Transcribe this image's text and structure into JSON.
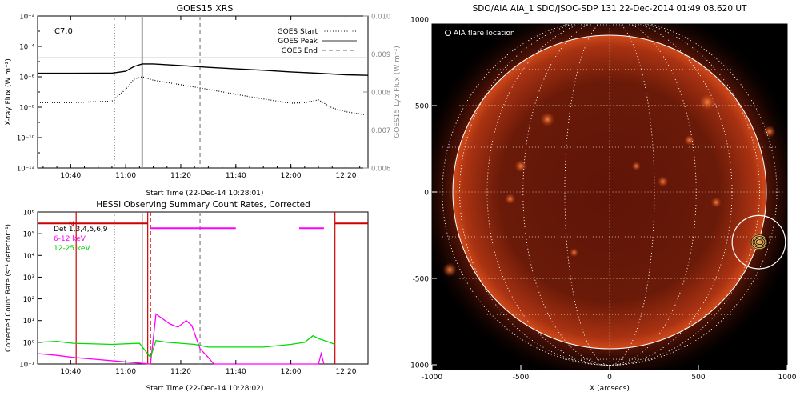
{
  "goes": {
    "title": "GOES15 XRS",
    "class_label": "C7.0",
    "ylabel_left": "X-ray Flux (W m⁻²)",
    "ylabel_right": "GOES15 Lyα Flux (W m⁻²)",
    "xlabel": "Start Time (22-Dec-14 10:28:01)",
    "legend": [
      {
        "label": "GOES Start",
        "style": "dotted"
      },
      {
        "label": "GOES Peak",
        "style": "solid"
      },
      {
        "label": "GOES End",
        "style": "dashed"
      }
    ],
    "colors": {
      "lya": "#9e9e9e",
      "long": "#000000",
      "short": "#000000",
      "marker": "#9a9a9a"
    }
  },
  "hessi": {
    "title": "HESSI Observing Summary Count Rates, Corrected",
    "ylabel": "Corrected Count Rate (s⁻¹ detector⁻¹)",
    "xlabel": "Start Time (22-Dec-14 10:28:02)",
    "legend": [
      {
        "label": "Det 1,3,4,5,6,9",
        "color": "#000000"
      },
      {
        "label": "6-12 keV",
        "color": "#ff00ff"
      },
      {
        "label": "12-25 keV",
        "color": "#00dd00"
      }
    ],
    "flag_letter": "N",
    "colors": {
      "low": "#ff00ff",
      "high": "#00dd00",
      "night": "#cc0000",
      "saa": "#ff00ff"
    }
  },
  "aia": {
    "title": "SDO/AIA AIA_1 SDO/JSOC-SDP 131 22-Dec-2014 01:49:08.620 UT",
    "legend": "AIA flare location",
    "xlabel": "X (arcsecs)",
    "ylabel": "Y (arcsecs)"
  },
  "chart_data": [
    {
      "type": "line",
      "title": "GOES15 XRS",
      "xlabel": "Start Time (22-Dec-14 10:28:01)",
      "ylabel": "X-ray Flux (W m⁻²)",
      "xlim": [
        "10:28",
        "12:28"
      ],
      "xticks": [
        "10:40",
        "11:00",
        "11:20",
        "11:40",
        "12:00",
        "12:20"
      ],
      "ylim": [
        1e-12,
        0.01
      ],
      "yscale": "log",
      "yticks": [
        "10⁻¹²",
        "10⁻¹⁰",
        "10⁻⁸",
        "10⁻⁶",
        "10⁻⁴",
        "10⁻²"
      ],
      "y2lim": [
        0.006,
        0.01
      ],
      "y2ticks": [
        "0.006",
        "0.007",
        "0.008",
        "0.009",
        "0.010"
      ],
      "markers": {
        "start": "10:56",
        "peak": "11:06",
        "end": "11:27"
      },
      "series": [
        {
          "name": "",
          "axis": "right",
          "x": [
            "10:28",
            "10:50",
            "11:10",
            "11:30",
            "11:50",
            "12:10",
            "12:28"
          ],
          "y": [
            0.0089,
            0.0089,
            0.0089,
            0.0089,
            0.0089,
            0.0089,
            0.0089
          ]
        },
        {
          "name": "",
          "axis": "left",
          "x": [
            "10:28",
            "10:40",
            "10:55",
            "11:00",
            "11:03",
            "11:06",
            "11:10",
            "11:20",
            "11:30",
            "11:40",
            "11:50",
            "12:00",
            "12:10",
            "12:20",
            "12:28"
          ],
          "y": [
            1.7e-06,
            1.7e-06,
            1.75e-06,
            2.3e-06,
            4.8e-06,
            7e-06,
            7e-06,
            5.5e-06,
            4.2e-06,
            3.3e-06,
            2.7e-06,
            2.1e-06,
            1.7e-06,
            1.35e-06,
            1.25e-06
          ]
        },
        {
          "name": "",
          "axis": "left",
          "x": [
            "10:28",
            "10:40",
            "10:55",
            "11:00",
            "11:03",
            "11:06",
            "11:10",
            "11:20",
            "11:30",
            "11:40",
            "11:50",
            "12:00",
            "12:05",
            "12:10",
            "12:15",
            "12:20",
            "12:28"
          ],
          "y": [
            2e-08,
            2e-08,
            2.5e-08,
            1.5e-07,
            7e-07,
            1e-06,
            6e-07,
            3e-07,
            1.5e-07,
            7e-08,
            3.5e-08,
            1.8e-08,
            2e-08,
            3e-08,
            9e-09,
            5e-09,
            3e-09
          ]
        }
      ]
    },
    {
      "type": "line",
      "title": "HESSI Observing Summary Count Rates, Corrected",
      "xlabel": "Start Time (22-Dec-14 10:28:02)",
      "ylabel": "Corrected Count Rate (s⁻¹ detector⁻¹)",
      "xlim": [
        "10:28",
        "12:28"
      ],
      "xticks": [
        "10:40",
        "11:00",
        "11:20",
        "11:40",
        "12:00",
        "12:20"
      ],
      "ylim": [
        0.1,
        1000000.0
      ],
      "yscale": "log",
      "yticks": [
        "10⁻¹",
        "10⁰",
        "10¹",
        "10²",
        "10³",
        "10⁴",
        "10⁵",
        "10⁶"
      ],
      "markers": {
        "start": "10:56",
        "peak": "11:06",
        "dashed_red": "11:09",
        "end": "11:27"
      },
      "night_intervals": [
        [
          "10:28",
          "10:42"
        ],
        [
          "11:08",
          "12:16"
        ]
      ],
      "bars": [
        {
          "color": "#cc0000",
          "level": 300000.0,
          "from": "10:28",
          "to": "11:08"
        },
        {
          "color": "#ff00ff",
          "level": 180000.0,
          "from": "11:09",
          "to": "11:40"
        },
        {
          "color": "#ff00ff",
          "level": 180000.0,
          "from": "12:03",
          "to": "12:12"
        },
        {
          "color": "#cc0000",
          "level": 300000.0,
          "from": "12:16",
          "to": "12:28"
        }
      ],
      "series": [
        {
          "name": "6-12 keV",
          "x": [
            "10:28",
            "10:35",
            "10:41",
            "11:09",
            "11:11",
            "11:16",
            "11:19",
            "11:22",
            "11:24",
            "11:27",
            "11:30",
            "11:32",
            "12:10",
            "12:11",
            "12:12"
          ],
          "y": [
            0.3,
            0.25,
            0.2,
            0.1,
            20,
            7,
            5,
            10,
            6,
            0.5,
            0.2,
            0.1,
            0.1,
            0.3,
            0.1
          ]
        },
        {
          "name": "12-25 keV",
          "x": [
            "10:28",
            "10:35",
            "10:41",
            "10:55",
            "11:05",
            "11:09",
            "11:11",
            "11:15",
            "11:20",
            "11:25",
            "11:30",
            "11:40",
            "11:50",
            "12:00",
            "12:05",
            "12:08",
            "12:10",
            "12:14",
            "12:16"
          ],
          "y": [
            1.0,
            1.1,
            0.9,
            0.8,
            0.9,
            0.2,
            1.2,
            1.0,
            0.9,
            0.8,
            0.6,
            0.6,
            0.6,
            0.8,
            1.0,
            2.0,
            1.5,
            1.0,
            0.8
          ]
        }
      ]
    },
    {
      "type": "heatmap",
      "title": "SDO/AIA AIA_1 SDO/JSOC-SDP 131 22-Dec-2014 01:49:08.620 UT",
      "xlabel": "X (arcsecs)",
      "ylabel": "Y (arcsecs)",
      "xlim": [
        -1000,
        1000
      ],
      "ylim": [
        -1000,
        1000
      ],
      "xticks": [
        -1000,
        -500,
        0,
        500,
        1000
      ],
      "yticks": [
        -1000,
        -500,
        0,
        500,
        1000
      ],
      "solar_radius_arcsec": 975,
      "grid": true,
      "flare_location": {
        "x": 840,
        "y": -290,
        "radius_arcsec": 150
      }
    }
  ]
}
